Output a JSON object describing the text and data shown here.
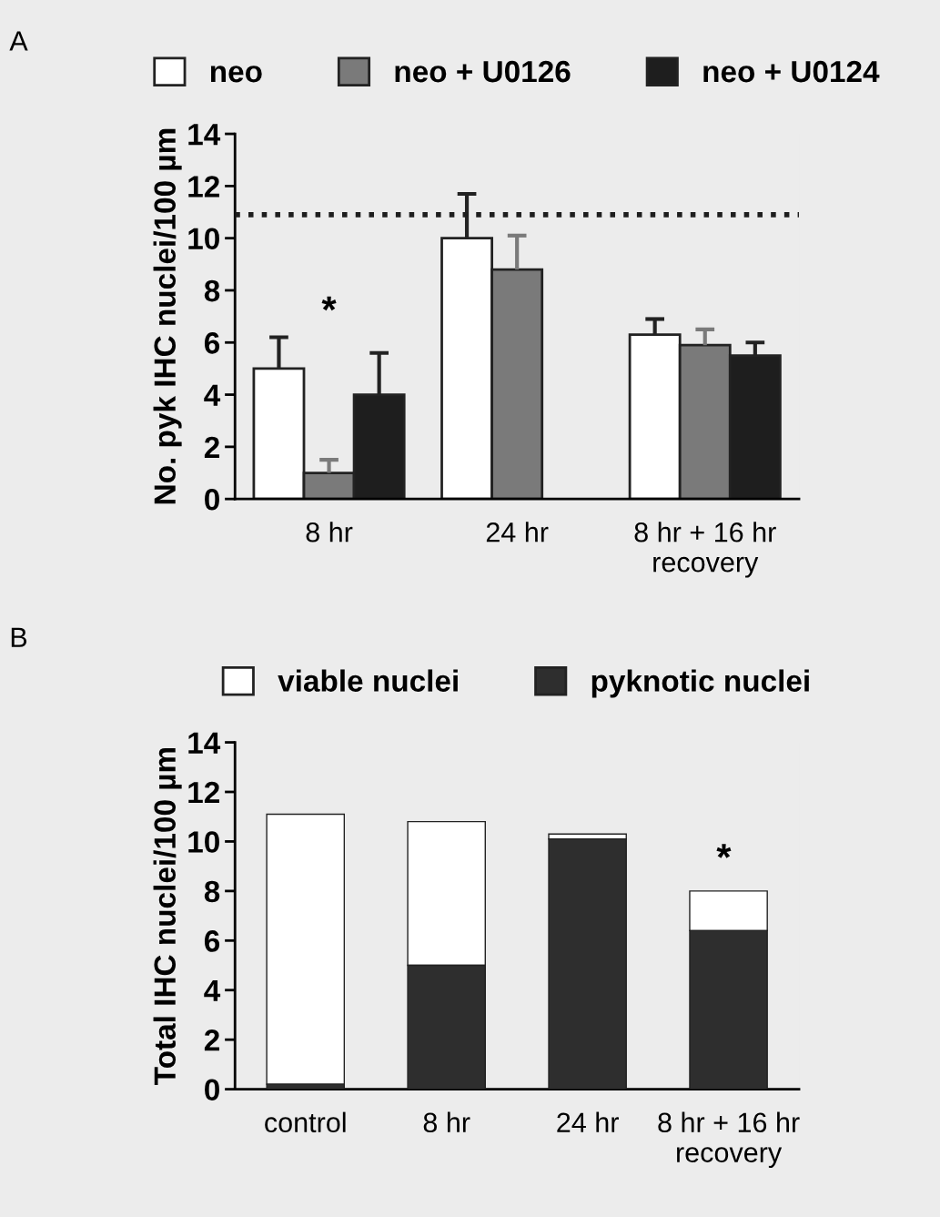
{
  "chart_data": [
    {
      "type": "bar",
      "ylabel": "No. pyk IHC nuclei/100 µm",
      "categories": [
        "8 hr",
        "24 hr",
        "8 hr + 16 hr\nrecovery"
      ],
      "ylim": [
        0,
        14
      ],
      "yticks": [
        0,
        2,
        4,
        6,
        8,
        10,
        12,
        14
      ],
      "legend": "top",
      "grid": false,
      "series": [
        {
          "name": "neo",
          "color": "#ffffff",
          "values": [
            5.0,
            10.0,
            6.3
          ],
          "errors": [
            [
              5.0,
              6.2
            ],
            [
              10.0,
              11.7
            ],
            [
              6.3,
              6.9
            ]
          ]
        },
        {
          "name": "neo + U0126",
          "color": "#7a7a7a",
          "values": [
            1.0,
            8.8,
            5.9
          ],
          "errors": [
            [
              1.0,
              1.5
            ],
            [
              8.8,
              10.1
            ],
            [
              5.9,
              6.5
            ]
          ]
        },
        {
          "name": "neo + U0124",
          "color": "#1e1e1e",
          "values": [
            4.0,
            null,
            5.5
          ],
          "errors": [
            [
              4.0,
              5.6
            ],
            null,
            [
              5.5,
              6.0
            ]
          ]
        }
      ],
      "ref_lines": [
        {
          "axis": "y",
          "value": 10.9,
          "line_style": "dotted",
          "color": "#1e1e1e"
        }
      ],
      "annotations": [
        "A",
        "*"
      ]
    },
    {
      "type": "bar",
      "stacked": true,
      "ylabel": "Total IHC nuclei/100 µm",
      "categories": [
        "control",
        "8 hr",
        "24 hr",
        "8 hr + 16 hr\nrecovery"
      ],
      "ylim": [
        0,
        14
      ],
      "yticks": [
        0,
        2,
        4,
        6,
        8,
        10,
        12,
        14
      ],
      "legend": "top",
      "grid": false,
      "series": [
        {
          "name": "pyknotic nuclei",
          "color": "#2e2e2e",
          "values": [
            0.2,
            5.0,
            10.1,
            6.4
          ]
        },
        {
          "name": "viable nuclei",
          "color": "#ffffff",
          "values": [
            10.9,
            5.8,
            0.2,
            1.6
          ]
        }
      ],
      "annotations": [
        "B",
        "*"
      ]
    }
  ]
}
